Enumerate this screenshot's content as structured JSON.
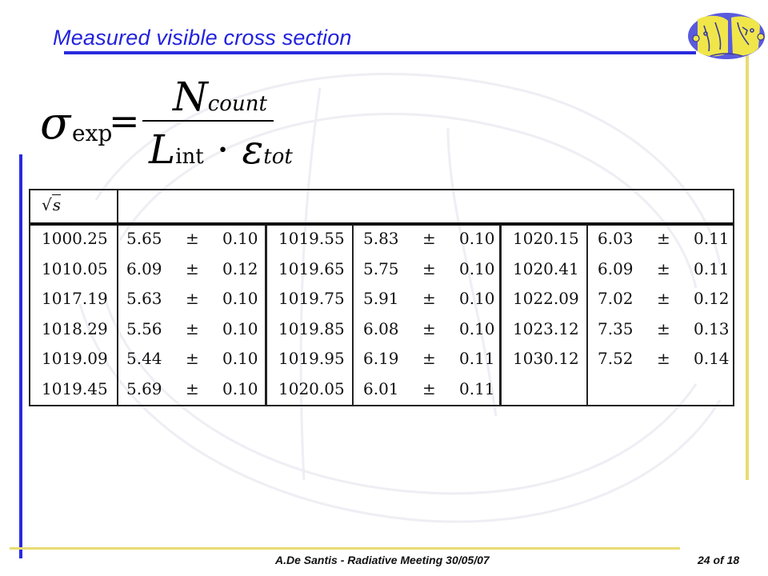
{
  "slide": {
    "title": "Measured visible cross section",
    "footer": "A.De Santis - Radiative Meeting 30/05/07",
    "page_number": "24 of 18"
  },
  "formula": {
    "sigma": "σ",
    "sigma_sub": "exp",
    "equals": "=",
    "numerator": "N",
    "numerator_sub": "count",
    "denominator_L": "L",
    "denominator_L_sub": "int",
    "dot": "·",
    "denominator_eps": "ε",
    "denominator_eps_sub": "tot"
  },
  "table": {
    "header_symbol": "s",
    "pm": "±",
    "groups": [
      {
        "rows": [
          {
            "sqrt_s": "1000.25",
            "value": "5.65",
            "error": "0.10"
          },
          {
            "sqrt_s": "1010.05",
            "value": "6.09",
            "error": "0.12"
          },
          {
            "sqrt_s": "1017.19",
            "value": "5.63",
            "error": "0.10"
          },
          {
            "sqrt_s": "1018.29",
            "value": "5.56",
            "error": "0.10"
          },
          {
            "sqrt_s": "1019.09",
            "value": "5.44",
            "error": "0.10"
          },
          {
            "sqrt_s": "1019.45",
            "value": "5.69",
            "error": "0.10"
          }
        ]
      },
      {
        "rows": [
          {
            "sqrt_s": "1019.55",
            "value": "5.83",
            "error": "0.10"
          },
          {
            "sqrt_s": "1019.65",
            "value": "5.75",
            "error": "0.10"
          },
          {
            "sqrt_s": "1019.75",
            "value": "5.91",
            "error": "0.10"
          },
          {
            "sqrt_s": "1019.85",
            "value": "6.08",
            "error": "0.10"
          },
          {
            "sqrt_s": "1019.95",
            "value": "6.19",
            "error": "0.11"
          },
          {
            "sqrt_s": "1020.05",
            "value": "6.01",
            "error": "0.11"
          }
        ]
      },
      {
        "rows": [
          {
            "sqrt_s": "1020.15",
            "value": "6.03",
            "error": "0.11"
          },
          {
            "sqrt_s": "1020.41",
            "value": "6.09",
            "error": "0.11"
          },
          {
            "sqrt_s": "1022.09",
            "value": "7.02",
            "error": "0.12"
          },
          {
            "sqrt_s": "1023.12",
            "value": "7.35",
            "error": "0.13"
          },
          {
            "sqrt_s": "1030.12",
            "value": "7.52",
            "error": "0.14"
          }
        ]
      }
    ]
  },
  "colors": {
    "title": "#2222dd",
    "blue_rule": "#2a2adf",
    "yellow_rule": "#e8dc72",
    "logo_fill": "#5a5adf"
  },
  "icons": {
    "logo": "kloe-logo-icon",
    "watermark": "background-watermark"
  }
}
